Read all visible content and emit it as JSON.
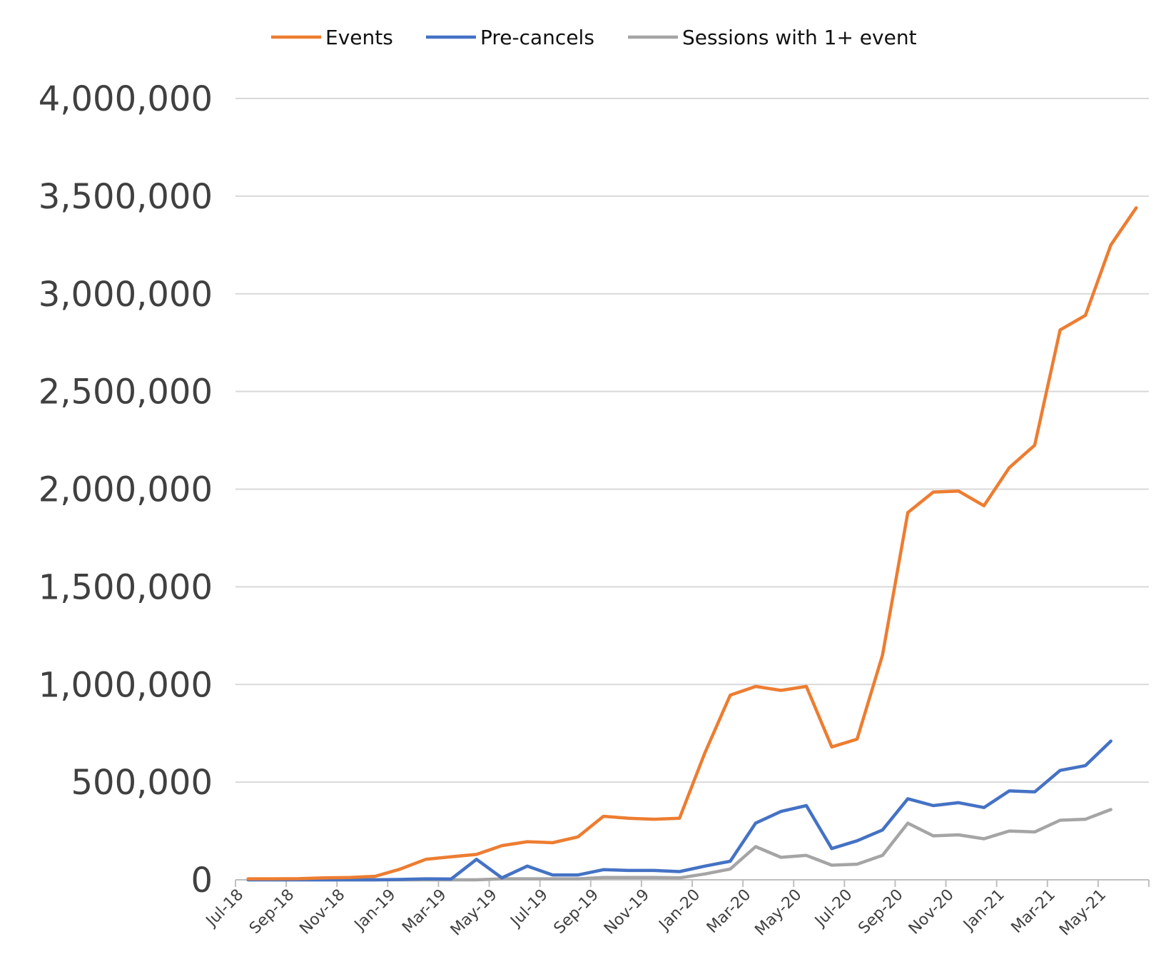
{
  "chart_data": {
    "type": "line",
    "title": "",
    "xlabel": "",
    "ylabel": "",
    "ylim": [
      0,
      4000000
    ],
    "yticks": [
      "0",
      "500,000",
      "1,000,000",
      "1,500,000",
      "2,000,000",
      "2,500,000",
      "3,000,000",
      "3,500,000",
      "4,000,000"
    ],
    "ytick_values": [
      0,
      500000,
      1000000,
      1500000,
      2000000,
      2500000,
      3000000,
      3500000,
      4000000
    ],
    "grid": true,
    "legend_position": "top",
    "categories": [
      "Jul-18",
      "Aug-18",
      "Sep-18",
      "Oct-18",
      "Nov-18",
      "Dec-18",
      "Jan-19",
      "Feb-19",
      "Mar-19",
      "Apr-19",
      "May-19",
      "Jun-19",
      "Jul-19",
      "Aug-19",
      "Sep-19",
      "Oct-19",
      "Nov-19",
      "Dec-19",
      "Jan-20",
      "Feb-20",
      "Mar-20",
      "Apr-20",
      "May-20",
      "Jun-20",
      "Jul-20",
      "Aug-20",
      "Sep-20",
      "Oct-20",
      "Nov-20",
      "Dec-20",
      "Jan-21",
      "Feb-21",
      "Mar-21",
      "Apr-21",
      "May-21",
      "Jun-21"
    ],
    "xtick_labels": [
      "Jul-18",
      "Sep-18",
      "Nov-18",
      "Jan-19",
      "Mar-19",
      "May-19",
      "Jul-19",
      "Sep-19",
      "Nov-19",
      "Jan-20",
      "Mar-20",
      "May-20",
      "Jul-20",
      "Sep-20",
      "Nov-20",
      "Jan-21",
      "Mar-21",
      "May-21"
    ],
    "series": [
      {
        "name": "Events",
        "color": "#ED7D31",
        "values": [
          5000,
          5000,
          6000,
          10000,
          12000,
          18000,
          55000,
          105000,
          118000,
          130000,
          175000,
          195000,
          190000,
          220000,
          325000,
          315000,
          310000,
          315000,
          650000,
          945000,
          990000,
          970000,
          990000,
          680000,
          720000,
          1150000,
          1880000,
          1985000,
          1990000,
          1915000,
          2110000,
          2225000,
          2815000,
          2890000,
          3250000,
          3440000
        ]
      },
      {
        "name": "Pre-cancels",
        "color": "#4472C4",
        "values": [
          0,
          0,
          0,
          0,
          0,
          0,
          2000,
          5000,
          4000,
          105000,
          10000,
          70000,
          25000,
          25000,
          52000,
          48000,
          48000,
          42000,
          70000,
          95000,
          290000,
          350000,
          380000,
          160000,
          200000,
          255000,
          415000,
          380000,
          395000,
          370000,
          455000,
          450000,
          560000,
          585000,
          710000,
          null
        ]
      },
      {
        "name": "Sessions with 1+ event",
        "color": "#A5A5A5",
        "values": [
          0,
          0,
          0,
          0,
          0,
          0,
          0,
          0,
          0,
          0,
          5000,
          5000,
          5000,
          5000,
          12000,
          12000,
          12000,
          10000,
          30000,
          55000,
          170000,
          115000,
          125000,
          75000,
          80000,
          125000,
          290000,
          225000,
          230000,
          210000,
          250000,
          245000,
          305000,
          310000,
          360000,
          null
        ]
      }
    ]
  }
}
